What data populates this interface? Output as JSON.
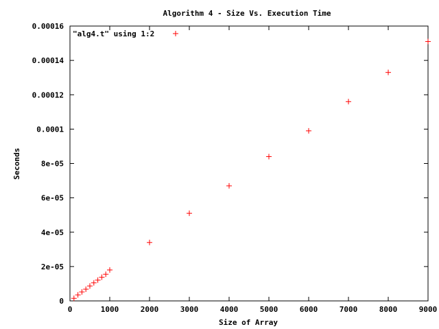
{
  "chart_data": {
    "type": "scatter",
    "title": "Algorithm 4 - Size Vs. Execution Time",
    "xlabel": "Size of Array",
    "ylabel": "Seconds",
    "xlim": [
      0,
      9000
    ],
    "ylim": [
      0,
      0.00016
    ],
    "x_ticks": [
      {
        "value": 0,
        "label": "0"
      },
      {
        "value": 1000,
        "label": "1000"
      },
      {
        "value": 2000,
        "label": "2000"
      },
      {
        "value": 3000,
        "label": "3000"
      },
      {
        "value": 4000,
        "label": "4000"
      },
      {
        "value": 5000,
        "label": "5000"
      },
      {
        "value": 6000,
        "label": "6000"
      },
      {
        "value": 7000,
        "label": "7000"
      },
      {
        "value": 8000,
        "label": "8000"
      },
      {
        "value": 9000,
        "label": "9000"
      }
    ],
    "y_ticks": [
      {
        "value": 0,
        "label": "0"
      },
      {
        "value": 2e-05,
        "label": "2e-05"
      },
      {
        "value": 4e-05,
        "label": "4e-05"
      },
      {
        "value": 6e-05,
        "label": "6e-05"
      },
      {
        "value": 8e-05,
        "label": "8e-05"
      },
      {
        "value": 0.0001,
        "label": "0.0001"
      },
      {
        "value": 0.00012,
        "label": "0.00012"
      },
      {
        "value": 0.00014,
        "label": "0.00014"
      },
      {
        "value": 0.00016,
        "label": "0.00016"
      }
    ],
    "grid": false,
    "legend_position": "top-left",
    "series": [
      {
        "name": "\"alg4.t\" using 1:2",
        "color": "#ff0000",
        "marker": "plus",
        "x": [
          100,
          200,
          300,
          400,
          500,
          600,
          700,
          800,
          900,
          1000,
          2000,
          3000,
          4000,
          5000,
          6000,
          7000,
          8000,
          9000
        ],
        "y": [
          1.5e-06,
          3.5e-06,
          5.2e-06,
          6.8e-06,
          8.7e-06,
          1.05e-05,
          1.21e-05,
          1.38e-05,
          1.55e-05,
          1.8e-05,
          3.4e-05,
          5.1e-05,
          6.7e-05,
          8.4e-05,
          9.9e-05,
          0.000116,
          0.000133,
          0.000151
        ]
      }
    ]
  }
}
